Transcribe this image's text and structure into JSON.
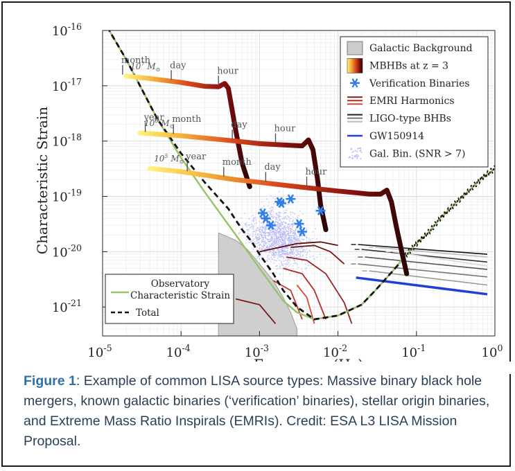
{
  "chart_data": {
    "type": "line",
    "ylabel": "Characteristic Strain",
    "xlabel": "Frequency (Hz)",
    "x_scale": "log",
    "y_scale": "log",
    "xlim": [
      1e-05,
      1
    ],
    "ylim": [
      3e-22,
      1e-16
    ],
    "grid": true,
    "x_ticks": [
      {
        "value": 1e-05,
        "base": "10",
        "exp": "-5"
      },
      {
        "value": 0.0001,
        "base": "10",
        "exp": "-4"
      },
      {
        "value": 0.001,
        "base": "10",
        "exp": "-3"
      },
      {
        "value": 0.01,
        "base": "10",
        "exp": "-2"
      },
      {
        "value": 0.1,
        "base": "10",
        "exp": "-1"
      },
      {
        "value": 1,
        "base": "10",
        "exp": "0"
      }
    ],
    "y_ticks": [
      {
        "value": 1e-16,
        "base": "10",
        "exp": "-16"
      },
      {
        "value": 1e-17,
        "base": "10",
        "exp": "-17"
      },
      {
        "value": 1e-18,
        "base": "10",
        "exp": "-18"
      },
      {
        "value": 1e-19,
        "base": "10",
        "exp": "-19"
      },
      {
        "value": 1e-20,
        "base": "10",
        "exp": "-20"
      },
      {
        "value": 1e-21,
        "base": "10",
        "exp": "-21"
      }
    ],
    "legend_top": {
      "placement": "top-right",
      "entries": [
        {
          "label": "Galactic Background",
          "kind": "patch",
          "color": "#cccccc"
        },
        {
          "label": "MBHBs at z = 3",
          "kind": "gradient"
        },
        {
          "label": "Verification Binaries",
          "kind": "star",
          "color": "#2f7fe6"
        },
        {
          "label": "EMRI Harmonics",
          "kind": "multiline",
          "colors": [
            "#8a1a1a",
            "#b02a2a",
            "#d04535"
          ]
        },
        {
          "label": "LIGO-type BHBs",
          "kind": "multiline",
          "colors": [
            "#222222",
            "#777777",
            "#bbbbbb"
          ]
        },
        {
          "label": "GW150914",
          "kind": "line",
          "color": "#1f3fd6"
        },
        {
          "label": "Gal. Bin. (SNR > 7)",
          "kind": "dots",
          "color": "#b7b9f2"
        }
      ]
    },
    "legend_bottom": {
      "placement": "bottom-left",
      "entries": [
        {
          "label": "Observatory",
          "label2": "Characteristic Strain",
          "kind": "line",
          "color": "#98c46b"
        },
        {
          "label": "Total",
          "kind": "dashed",
          "color": "#111111"
        }
      ]
    },
    "observatory_strain": [
      [
        1e-05,
        1.6e-16
      ],
      [
        2e-05,
        3e-17
      ],
      [
        5e-05,
        2.5e-18
      ],
      [
        0.0001,
        5e-19
      ],
      [
        0.0002,
        1.2e-19
      ],
      [
        0.0005,
        2e-20
      ],
      [
        0.001,
        5e-21
      ],
      [
        0.002,
        1.3e-21
      ],
      [
        0.003,
        8e-22
      ],
      [
        0.005,
        6e-22
      ],
      [
        0.01,
        7e-22
      ],
      [
        0.02,
        1.1e-21
      ],
      [
        0.03,
        2e-21
      ],
      [
        0.05,
        4.5e-21
      ],
      [
        0.07,
        8e-21
      ],
      [
        0.1,
        1.4e-20
      ],
      [
        0.15,
        2.4e-20
      ],
      [
        0.2,
        4e-20
      ],
      [
        0.3,
        7e-20
      ],
      [
        0.5,
        1.4e-19
      ],
      [
        0.7,
        2.2e-19
      ],
      [
        1,
        3.2e-19
      ]
    ],
    "total_strain": [
      [
        1e-05,
        1.6e-16
      ],
      [
        2e-05,
        3e-17
      ],
      [
        5e-05,
        2.5e-18
      ],
      [
        0.0001,
        6e-19
      ],
      [
        0.0002,
        1.8e-19
      ],
      [
        0.0004,
        6e-20
      ],
      [
        0.0006,
        2.5e-20
      ],
      [
        0.0008,
        1.5e-20
      ],
      [
        0.001,
        9e-21
      ],
      [
        0.0015,
        4e-21
      ],
      [
        0.002,
        2e-21
      ],
      [
        0.003,
        1e-21
      ],
      [
        0.005,
        6e-22
      ],
      [
        0.01,
        7e-22
      ],
      [
        0.02,
        1.1e-21
      ],
      [
        0.03,
        2e-21
      ],
      [
        0.05,
        4.5e-21
      ],
      [
        0.06,
        6e-21
      ]
    ],
    "galactic_background": [
      [
        0.0003,
        1e-21
      ],
      [
        0.0003,
        2.2e-20
      ],
      [
        0.0005,
        1.6e-20
      ],
      [
        0.0007,
        1.1e-20
      ],
      [
        0.001,
        6e-21
      ],
      [
        0.0015,
        3e-21
      ],
      [
        0.002,
        1.5e-21
      ],
      [
        0.0025,
        8e-22
      ],
      [
        0.003,
        4e-22
      ],
      [
        0.003,
        3e-22
      ],
      [
        0.0003,
        3e-22
      ]
    ],
    "mbhb_tracks": [
      {
        "label": "10^7 M⊙",
        "mass_base": "10",
        "mass_exp": "7",
        "points": [
          [
            2e-05,
            1.5e-17
          ],
          [
            4e-05,
            1.35e-17
          ],
          [
            0.0001,
            1.15e-17
          ],
          [
            0.0002,
            9.8e-18
          ],
          [
            0.0003,
            9.6e-18
          ],
          [
            0.00036,
            1.1e-17
          ],
          [
            0.0004,
            9e-18
          ],
          [
            0.0005,
            1.5e-18
          ],
          [
            0.0006,
            4e-19
          ],
          [
            0.00075,
            1.5e-19
          ]
        ],
        "time_marks": [
          {
            "label": "month",
            "f": 1.8e-05
          },
          {
            "label": "day",
            "f": 7.5e-05
          },
          {
            "label": "hour",
            "f": 0.0003
          }
        ]
      },
      {
        "label": "10^6 M⊙",
        "mass_base": "10",
        "mass_exp": "6",
        "points": [
          [
            3e-05,
            1.4e-18
          ],
          [
            0.0001,
            1.25e-18
          ],
          [
            0.0005,
            1e-18
          ],
          [
            0.001,
            9e-19
          ],
          [
            0.002,
            8.5e-19
          ],
          [
            0.0035,
            8.2e-19
          ],
          [
            0.0042,
            1.05e-18
          ],
          [
            0.0048,
            7e-19
          ],
          [
            0.0055,
            2e-19
          ],
          [
            0.006,
            7e-20
          ],
          [
            0.007,
            2.5e-20
          ]
        ],
        "time_marks": [
          {
            "label": "year",
            "f": 3.5e-05
          },
          {
            "label": "month",
            "f": 8e-05
          },
          {
            "label": "day",
            "f": 0.00045
          },
          {
            "label": "hour",
            "f": 0.0016
          }
        ]
      },
      {
        "label": "10^5 M⊙",
        "mass_base": "10",
        "mass_exp": "5",
        "points": [
          [
            4e-05,
            3.2e-19
          ],
          [
            0.0001,
            2.8e-19
          ],
          [
            0.0005,
            2e-19
          ],
          [
            0.001,
            1.8e-19
          ],
          [
            0.003,
            1.5e-19
          ],
          [
            0.01,
            1.25e-19
          ],
          [
            0.025,
            1.1e-19
          ],
          [
            0.035,
            1.1e-19
          ],
          [
            0.042,
            1.3e-19
          ],
          [
            0.048,
            8e-20
          ],
          [
            0.055,
            3e-20
          ],
          [
            0.065,
            1e-20
          ],
          [
            0.075,
            4e-21
          ]
        ],
        "time_marks": [
          {
            "label": "year",
            "f": 0.00012
          },
          {
            "label": "month",
            "f": 0.00035
          },
          {
            "label": "day",
            "f": 0.0012
          },
          {
            "label": "hour",
            "f": 0.004
          }
        ]
      }
    ],
    "verification_binaries": [
      [
        0.0011,
        5e-20
      ],
      [
        0.0012,
        4e-20
      ],
      [
        0.0014,
        3e-20
      ],
      [
        0.0018,
        8e-20
      ],
      [
        0.0019,
        7.5e-20
      ],
      [
        0.0025,
        9e-20
      ],
      [
        0.0032,
        3.2e-20
      ],
      [
        0.0035,
        2.3e-20
      ],
      [
        0.006,
        5.5e-20
      ]
    ],
    "emri_harmonics": [
      {
        "color": "#5c0f0f",
        "points": [
          [
            0.001,
            1e-20
          ],
          [
            0.003,
            1.4e-20
          ],
          [
            0.006,
            1.5e-20
          ],
          [
            0.01,
            1.3e-20
          ]
        ]
      },
      {
        "color": "#7a1515",
        "points": [
          [
            0.0025,
            1.2e-20
          ],
          [
            0.005,
            1.3e-20
          ],
          [
            0.008,
            1e-20
          ],
          [
            0.012,
            6e-21
          ]
        ]
      },
      {
        "color": "#9a2020",
        "points": [
          [
            0.0022,
            8e-21
          ],
          [
            0.004,
            7e-21
          ],
          [
            0.007,
            4e-21
          ],
          [
            0.012,
            1.2e-21
          ],
          [
            0.015,
            5e-22
          ]
        ]
      },
      {
        "color": "#b52a25",
        "points": [
          [
            0.002,
            5e-21
          ],
          [
            0.0035,
            4e-21
          ],
          [
            0.005,
            2e-21
          ],
          [
            0.007,
            6e-22
          ]
        ]
      },
      {
        "color": "#c8382e",
        "points": [
          [
            0.0015,
            3e-21
          ],
          [
            0.0025,
            2e-21
          ],
          [
            0.0035,
            6e-22
          ]
        ]
      },
      {
        "color": "#7a1515",
        "points": [
          [
            0.0005,
            1.4e-21
          ],
          [
            0.001,
            1.1e-21
          ],
          [
            0.0016,
            5e-22
          ]
        ]
      },
      {
        "color": "#d94a3a",
        "points": [
          [
            0.003,
            2.5e-21
          ],
          [
            0.004,
            1.5e-21
          ],
          [
            0.005,
            5e-22
          ]
        ]
      }
    ],
    "ligo_bhbs": [
      {
        "color": "#111111",
        "points": [
          [
            0.018,
            1.35e-20
          ],
          [
            0.8,
            9e-21
          ]
        ]
      },
      {
        "color": "#333333",
        "points": [
          [
            0.02,
            1.1e-20
          ],
          [
            0.8,
            6.5e-21
          ]
        ]
      },
      {
        "color": "#555555",
        "points": [
          [
            0.022,
            8e-21
          ],
          [
            0.8,
            4.8e-21
          ]
        ]
      },
      {
        "color": "#777777",
        "points": [
          [
            0.018,
            6e-21
          ],
          [
            0.8,
            3.5e-21
          ]
        ]
      },
      {
        "color": "#999999",
        "points": [
          [
            0.025,
            4.5e-21
          ],
          [
            0.8,
            2.5e-21
          ]
        ]
      },
      {
        "color": "#bbbbbb",
        "points": [
          [
            0.03,
            1.2e-20
          ],
          [
            0.8,
            8e-21
          ]
        ]
      },
      {
        "color": "#d8d8d8",
        "points": [
          [
            0.05,
            1e-20
          ],
          [
            0.8,
            5.5e-21
          ]
        ]
      }
    ],
    "gw150914": {
      "color": "#1f3fd6",
      "points": [
        [
          0.017,
          3.4e-21
        ],
        [
          0.8,
          1.7e-21
        ]
      ]
    }
  },
  "caption": {
    "figure_label": "Figure 1",
    "text": ": Example of common LISA source types: Massive binary black hole mergers, known galactic binaries (‘verification’ binaries), stellar origin binaries, and Extreme Mass Ratio Inspirals (EMRIs). Credit: ESA L3 LISA Mission Proposal."
  }
}
